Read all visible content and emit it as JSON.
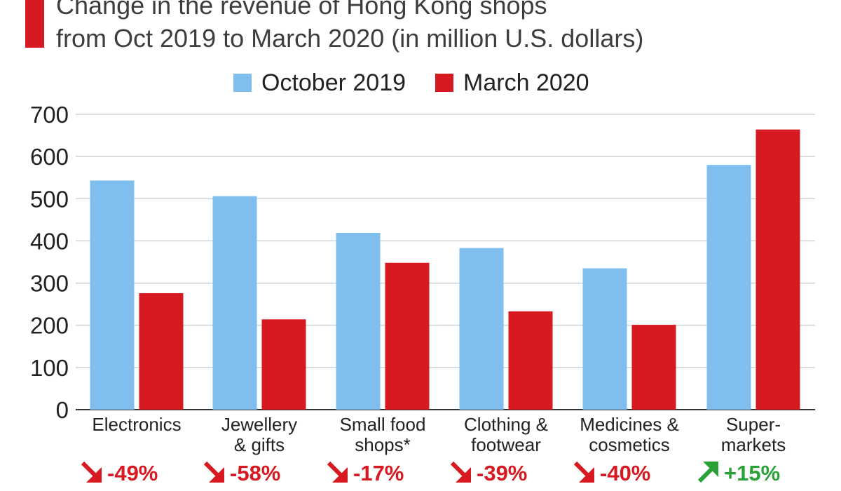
{
  "chart_data": {
    "type": "bar",
    "title": "Change in the revenue of Hong Kong shops",
    "subtitle": "from Oct 2019 to March 2020 (in million U.S. dollars)",
    "categories": [
      [
        "Electronics"
      ],
      [
        "Jewellery",
        "& gifts"
      ],
      [
        "Small food",
        "shops*"
      ],
      [
        "Clothing &",
        "footwear"
      ],
      [
        "Medicines &",
        "cosmetics"
      ],
      [
        "Super-",
        "markets"
      ]
    ],
    "series": [
      {
        "name": "October 2019",
        "values": [
          543,
          506,
          419,
          383,
          335,
          580
        ],
        "color": "#7fbfef"
      },
      {
        "name": "March 2020",
        "values": [
          276,
          214,
          348,
          233,
          201,
          664
        ],
        "color": "#d71921"
      }
    ],
    "changes": [
      {
        "label": "-49%",
        "direction": "down"
      },
      {
        "label": "-58%",
        "direction": "down"
      },
      {
        "label": "-17%",
        "direction": "down"
      },
      {
        "label": "-39%",
        "direction": "down"
      },
      {
        "label": "-40%",
        "direction": "down"
      },
      {
        "label": "+15%",
        "direction": "up"
      }
    ],
    "ylim": [
      0,
      700
    ],
    "yticks": [
      0,
      100,
      200,
      300,
      400,
      500,
      600,
      700
    ],
    "grid": true,
    "legend_position": "top-center",
    "accent_color": "#d71921",
    "up_color": "#2aa136",
    "down_color": "#d71921"
  }
}
